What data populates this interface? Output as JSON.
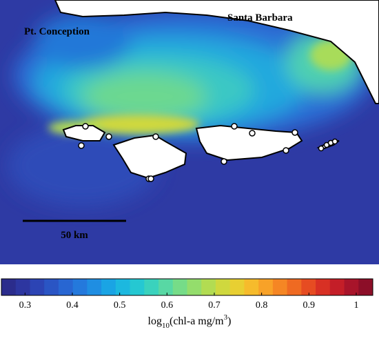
{
  "map": {
    "labels": {
      "north": "Santa Barbara",
      "west": "Pt. Conception",
      "scale": "50 km"
    }
  },
  "colorbar": {
    "clim": [
      0.25,
      1.035
    ],
    "ticks": [
      0.3,
      0.4,
      0.5,
      0.6,
      0.7,
      0.8,
      0.9,
      1
    ],
    "colors": [
      "#2b2c8c",
      "#2d36a0",
      "#2c44b4",
      "#2a55c4",
      "#2866d2",
      "#2479dc",
      "#1f8ee2",
      "#1aa4e4",
      "#1cb8df",
      "#25c8d2",
      "#3ad2bd",
      "#58d8a4",
      "#76dc88",
      "#94dd6c",
      "#b2dc52",
      "#cfd83e",
      "#e8cf32",
      "#f6bb2c",
      "#f8a228",
      "#f58624",
      "#ef6a22",
      "#e64c22",
      "#d83024",
      "#c41e28",
      "#a8142a",
      "#8c0e28"
    ],
    "label": {
      "base": "log",
      "sub": "10",
      "mid": "(chl-a mg/m",
      "sup": "3",
      "end": ")"
    }
  }
}
